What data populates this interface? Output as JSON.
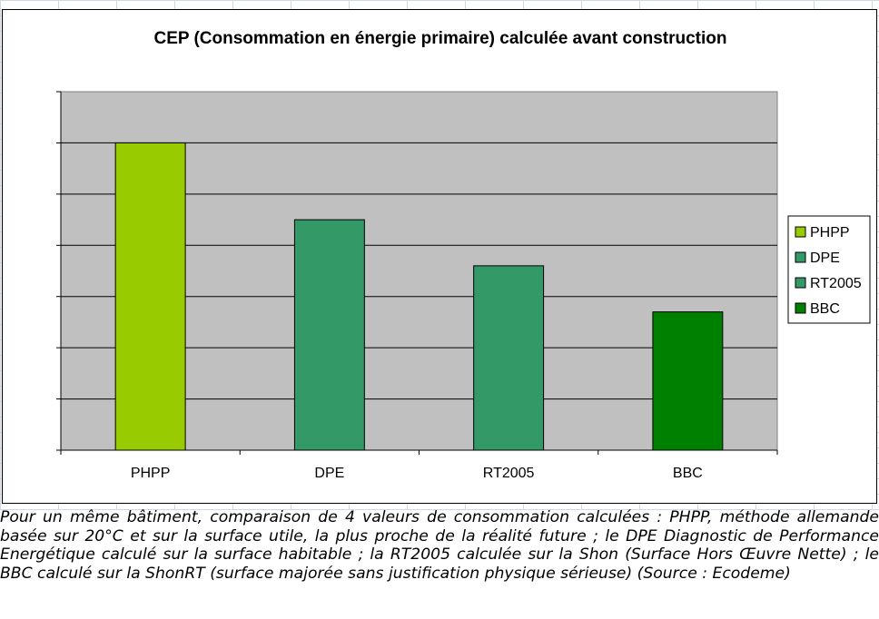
{
  "chart_data": {
    "type": "bar",
    "title": "CEP (Consommation en énergie primaire) calculée avant construction",
    "categories": [
      "PHPP",
      "DPE",
      "RT2005",
      "BBC"
    ],
    "values": [
      60,
      45,
      36,
      27
    ],
    "colors": [
      "#99cc00",
      "#339966",
      "#339966",
      "#008000"
    ],
    "ylim": [
      0,
      70
    ],
    "ytick_step": 10,
    "y_tick_labels_visible": false,
    "xlabel": "",
    "ylabel": "",
    "grid": true,
    "plot_background": "#c0c0c0",
    "legend": {
      "position": "right",
      "entries": [
        {
          "label": "PHPP",
          "color": "#99cc00"
        },
        {
          "label": "DPE",
          "color": "#339966"
        },
        {
          "label": "RT2005",
          "color": "#339966"
        },
        {
          "label": "BBC",
          "color": "#008000"
        }
      ]
    }
  },
  "caption": "Pour un même bâtiment, comparaison de 4 valeurs de consommation calculées : PHPP, méthode allemande basée sur 20°C et sur la surface utile, la plus proche de la réalité future ; le DPE Diagnostic de Performance Energétique calculé sur la surface habitable ; la RT2005 calculée sur la Shon (Surface Hors Œuvre Nette) ; le BBC calculé sur la ShonRT (surface majorée sans justification physique sérieuse) (Source : Ecodeme)"
}
